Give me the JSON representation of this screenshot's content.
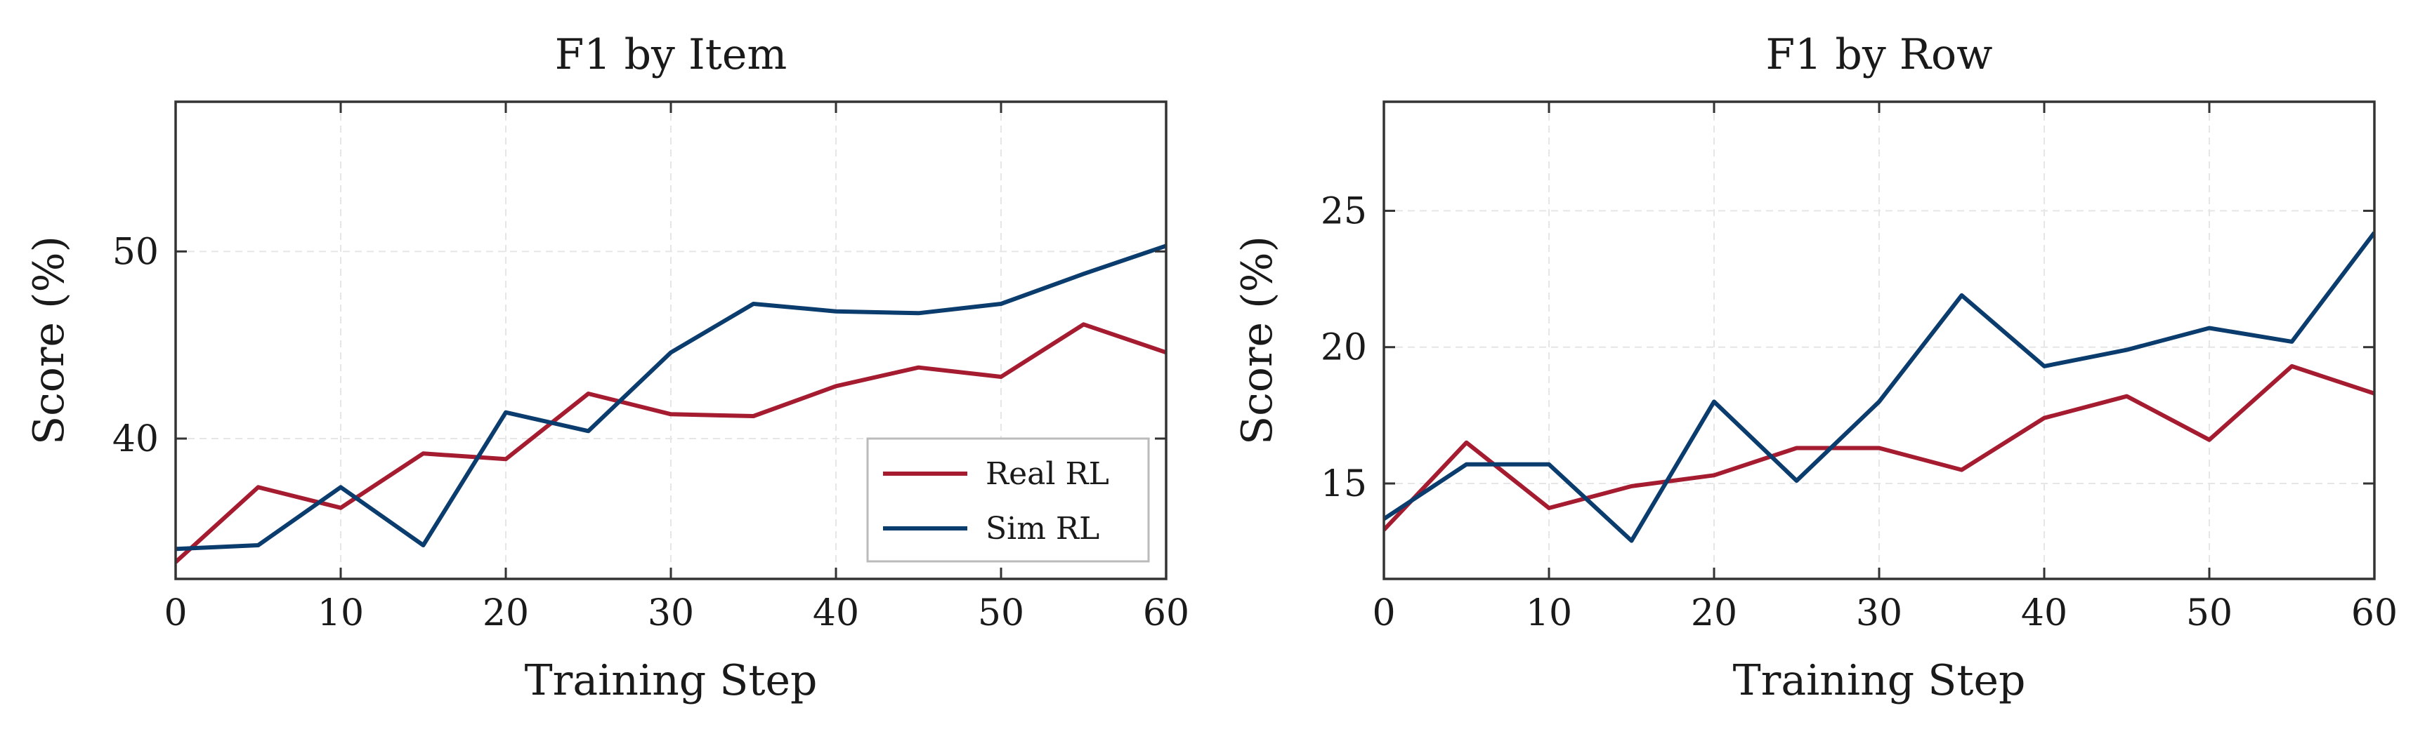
{
  "colors": {
    "real": "#a51c30",
    "sim": "#0b3c6e",
    "axis": "#333333",
    "grid": "#e6e6e6",
    "legend_border": "#bbbbbb"
  },
  "legend": {
    "entries": [
      "Real RL",
      "Sim RL"
    ],
    "placement": "lower-right",
    "chart": 0
  },
  "chart_data": [
    {
      "type": "line",
      "title": "F1 by Item",
      "xlabel": "Training Step",
      "ylabel": "Score (%)",
      "xlim": [
        0,
        60
      ],
      "ylim": [
        32.5,
        58
      ],
      "xticks": [
        0,
        10,
        20,
        30,
        40,
        50,
        60
      ],
      "yticks": [
        40,
        50
      ],
      "grid": true,
      "x": [
        0,
        5,
        10,
        15,
        20,
        25,
        30,
        35,
        40,
        45,
        50,
        55,
        60
      ],
      "series": [
        {
          "name": "Real RL",
          "values": [
            33.4,
            37.4,
            36.3,
            39.2,
            38.9,
            42.4,
            41.3,
            41.2,
            42.8,
            43.8,
            43.3,
            46.1,
            44.6
          ]
        },
        {
          "name": "Sim RL",
          "values": [
            34.1,
            34.3,
            37.4,
            34.3,
            41.4,
            40.4,
            44.6,
            47.2,
            46.8,
            46.7,
            47.2,
            48.8,
            50.3
          ]
        }
      ]
    },
    {
      "type": "line",
      "title": "F1 by Row",
      "xlabel": "Training Step",
      "ylabel": "Score (%)",
      "xlim": [
        0,
        60
      ],
      "ylim": [
        11.5,
        29
      ],
      "xticks": [
        0,
        10,
        20,
        30,
        40,
        50,
        60
      ],
      "yticks": [
        15,
        20,
        25
      ],
      "grid": true,
      "x": [
        0,
        5,
        10,
        15,
        20,
        25,
        30,
        35,
        40,
        45,
        50,
        55,
        60
      ],
      "series": [
        {
          "name": "Real RL",
          "values": [
            13.3,
            16.5,
            14.1,
            14.9,
            15.3,
            16.3,
            16.3,
            15.5,
            17.4,
            18.2,
            16.6,
            19.3,
            18.3
          ]
        },
        {
          "name": "Sim RL",
          "values": [
            13.7,
            15.7,
            15.7,
            12.9,
            18.0,
            15.1,
            18.0,
            21.9,
            19.3,
            19.9,
            20.7,
            20.2,
            24.2
          ]
        }
      ]
    }
  ]
}
